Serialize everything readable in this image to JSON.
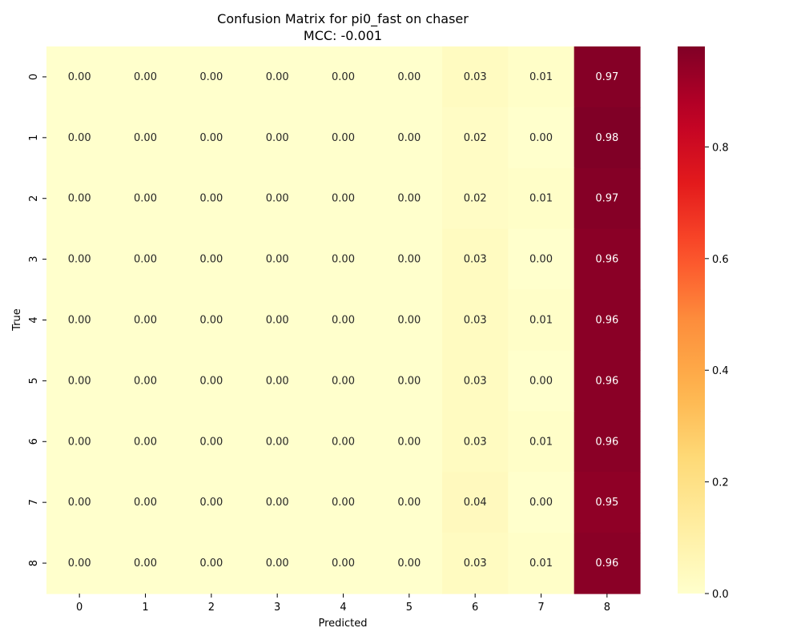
{
  "chart_data": {
    "type": "heatmap",
    "title": "Confusion Matrix for pi0_fast on chaser",
    "subtitle": "MCC: -0.001",
    "xlabel": "Predicted",
    "ylabel": "True",
    "x_categories": [
      "0",
      "1",
      "2",
      "3",
      "4",
      "5",
      "6",
      "7",
      "8"
    ],
    "y_categories": [
      "0",
      "1",
      "2",
      "3",
      "4",
      "5",
      "6",
      "7",
      "8"
    ],
    "values": [
      [
        0.0,
        0.0,
        0.0,
        0.0,
        0.0,
        0.0,
        0.03,
        0.01,
        0.97
      ],
      [
        0.0,
        0.0,
        0.0,
        0.0,
        0.0,
        0.0,
        0.02,
        0.0,
        0.98
      ],
      [
        0.0,
        0.0,
        0.0,
        0.0,
        0.0,
        0.0,
        0.02,
        0.01,
        0.97
      ],
      [
        0.0,
        0.0,
        0.0,
        0.0,
        0.0,
        0.0,
        0.03,
        0.0,
        0.96
      ],
      [
        0.0,
        0.0,
        0.0,
        0.0,
        0.0,
        0.0,
        0.03,
        0.01,
        0.96
      ],
      [
        0.0,
        0.0,
        0.0,
        0.0,
        0.0,
        0.0,
        0.03,
        0.0,
        0.96
      ],
      [
        0.0,
        0.0,
        0.0,
        0.0,
        0.0,
        0.0,
        0.03,
        0.01,
        0.96
      ],
      [
        0.0,
        0.0,
        0.0,
        0.0,
        0.0,
        0.0,
        0.04,
        0.0,
        0.95
      ],
      [
        0.0,
        0.0,
        0.0,
        0.0,
        0.0,
        0.0,
        0.03,
        0.01,
        0.96
      ]
    ],
    "value_format": "0.00",
    "colormap": "YlOrRd",
    "colorbar": {
      "range": [
        0.0,
        0.98
      ],
      "ticks": [
        0.0,
        0.2,
        0.4,
        0.6,
        0.8
      ],
      "tick_labels": [
        "0.0",
        "0.2",
        "0.4",
        "0.6",
        "0.8"
      ]
    },
    "grid": false,
    "legend": "colorbar-right"
  }
}
